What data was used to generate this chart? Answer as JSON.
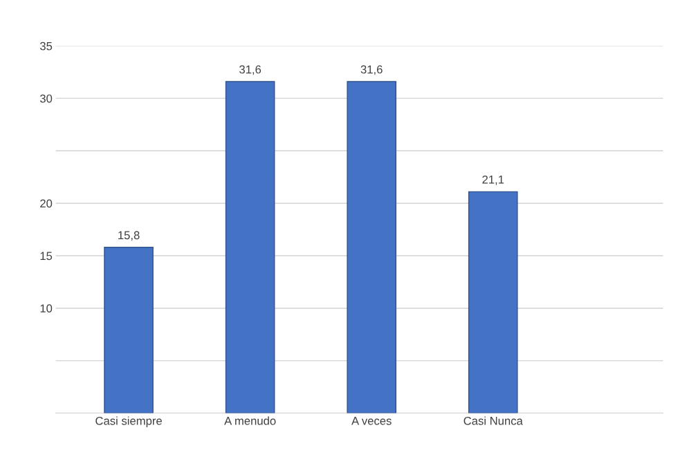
{
  "chart_data": {
    "type": "bar",
    "categories": [
      "Casi siempre",
      "A menudo",
      "A veces",
      "Casi Nunca"
    ],
    "values": [
      15.8,
      31.6,
      31.6,
      21.1
    ],
    "value_labels": [
      "15,8",
      "31,6",
      "31,6",
      "21,1"
    ],
    "color": "#4472c4",
    "ylim": [
      0,
      35
    ],
    "yticks": [
      {
        "value": 0,
        "label": null
      },
      {
        "value": 5,
        "label": null
      },
      10,
      15,
      20,
      {
        "value": 25,
        "label": null
      },
      30,
      35
    ],
    "grid": "y"
  }
}
